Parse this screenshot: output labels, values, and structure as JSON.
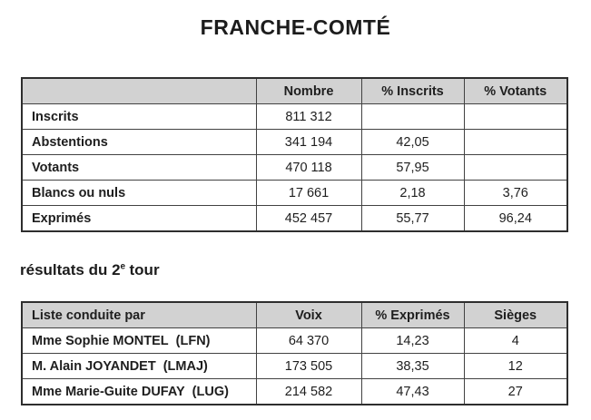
{
  "page": {
    "title": "FRANCHE-COMTÉ",
    "section_heading": {
      "prefix": "résultats du 2",
      "superscript": "e",
      "suffix": "tour"
    }
  },
  "colors": {
    "background": "#ffffff",
    "table_header_bg": "#d2d2d2",
    "table_border": "#3c3c3c",
    "text": "#1e1e1e"
  },
  "participation_table": {
    "headers": [
      "",
      "Nombre",
      "% Inscrits",
      "% Votants"
    ],
    "rows": [
      {
        "label": "Inscrits",
        "nombre": "811 312",
        "pct_inscrits": "",
        "pct_votants": ""
      },
      {
        "label": "Abstentions",
        "nombre": "341 194",
        "pct_inscrits": "42,05",
        "pct_votants": ""
      },
      {
        "label": "Votants",
        "nombre": "470 118",
        "pct_inscrits": "57,95",
        "pct_votants": ""
      },
      {
        "label": "Blancs ou nuls",
        "nombre": "17 661",
        "pct_inscrits": "2,18",
        "pct_votants": "3,76"
      },
      {
        "label": "Exprimés",
        "nombre": "452 457",
        "pct_inscrits": "55,77",
        "pct_votants": "96,24"
      }
    ]
  },
  "results_table": {
    "headers": [
      "Liste conduite par",
      "Voix",
      "% Exprimés",
      "Sièges"
    ],
    "rows": [
      {
        "name": "Mme Sophie MONTEL",
        "party": "(LFN)",
        "voix": "64 370",
        "pct_exprimes": "14,23",
        "sieges": "4"
      },
      {
        "name": "M. Alain JOYANDET",
        "party": "(LMAJ)",
        "voix": "173 505",
        "pct_exprimes": "38,35",
        "sieges": "12"
      },
      {
        "name": "Mme Marie-Guite DUFAY",
        "party": "(LUG)",
        "voix": "214 582",
        "pct_exprimes": "47,43",
        "sieges": "27"
      }
    ]
  }
}
